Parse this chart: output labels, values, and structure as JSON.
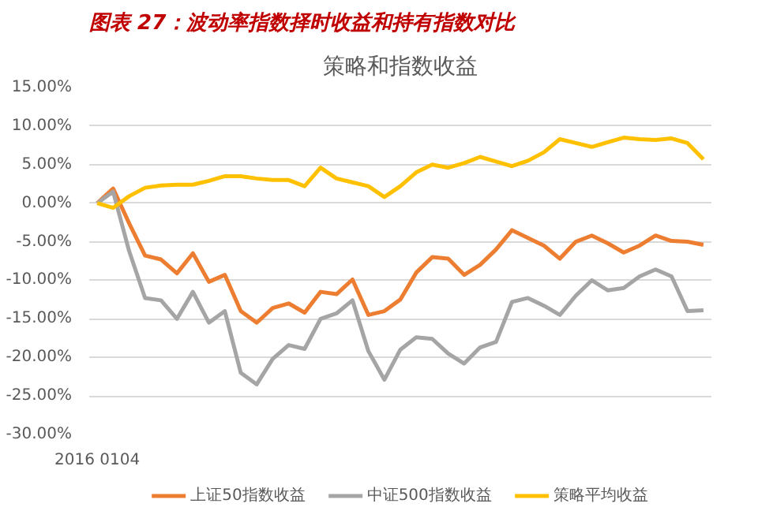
{
  "chart_data": {
    "type": "line",
    "title": "图表 27：波动率指数择时收益和持有指数对比",
    "subtitle": "策略和指数收益",
    "categories": [
      "2016 0104",
      null,
      null,
      null,
      null,
      null,
      null,
      null,
      null,
      null,
      null,
      null,
      null,
      null,
      null,
      null,
      null,
      null,
      null,
      null,
      null,
      null,
      null,
      null,
      null,
      null,
      null,
      null,
      null,
      null,
      null,
      null,
      null,
      null,
      null,
      null,
      null,
      null,
      null
    ],
    "series": [
      {
        "name": "上证50指数收益",
        "color": "#ed7d31",
        "values": [
          0,
          1.9,
          -2.6,
          -6.8,
          -7.3,
          -9.1,
          -6.5,
          -10.2,
          -9.3,
          -14.0,
          -15.5,
          -13.6,
          -13.0,
          -14.2,
          -11.5,
          -11.8,
          -9.9,
          -14.5,
          -14.0,
          -12.5,
          -9.0,
          -7.0,
          -7.2,
          -9.3,
          -8.0,
          -6.0,
          -3.5,
          -4.5,
          -5.5,
          -7.2,
          -5.0,
          -4.2,
          -5.2,
          -6.4,
          -5.5,
          -4.2,
          -4.9,
          -5.0,
          -5.4
        ]
      },
      {
        "name": "中证500指数收益",
        "color": "#a5a5a5",
        "values": [
          0,
          1.5,
          -6.2,
          -12.3,
          -12.6,
          -15.0,
          -11.5,
          -15.5,
          -14.0,
          -22.0,
          -23.5,
          -20.2,
          -18.4,
          -18.9,
          -15.0,
          -14.3,
          -12.6,
          -19.2,
          -22.9,
          -19.0,
          -17.4,
          -17.6,
          -19.5,
          -20.8,
          -18.7,
          -18.0,
          -12.8,
          -12.3,
          -13.3,
          -14.5,
          -12.0,
          -10.0,
          -11.3,
          -11.0,
          -9.5,
          -8.6,
          -9.5,
          -14.0,
          -13.9
        ]
      },
      {
        "name": "策略平均收益",
        "color": "#ffc000",
        "values": [
          0,
          -0.6,
          0.9,
          2.0,
          2.3,
          2.4,
          2.4,
          2.9,
          3.5,
          3.5,
          3.2,
          3.0,
          3.0,
          2.2,
          4.6,
          3.2,
          2.7,
          2.2,
          0.8,
          2.2,
          4.0,
          5.0,
          4.6,
          5.2,
          6.0,
          5.4,
          4.8,
          5.5,
          6.6,
          8.3,
          7.8,
          7.3,
          7.9,
          8.5,
          8.3,
          8.2,
          8.4,
          7.8,
          5.7
        ]
      }
    ],
    "ylim": [
      -30,
      15
    ],
    "yticks": [
      {
        "value": 15,
        "label": "15.00%"
      },
      {
        "value": 10,
        "label": "10.00%"
      },
      {
        "value": 5,
        "label": "5.00%"
      },
      {
        "value": 0,
        "label": "0.00%"
      },
      {
        "value": -5,
        "label": "-5.00%"
      },
      {
        "value": -10,
        "label": "-10.00%"
      },
      {
        "value": -15,
        "label": "-15.00%"
      },
      {
        "value": -20,
        "label": "-20.00%"
      },
      {
        "value": -25,
        "label": "-25.00%"
      },
      {
        "value": -30,
        "label": "-30.00%"
      }
    ],
    "grid": "y",
    "legend": "bottom",
    "marker": "none",
    "line_style": "solid"
  }
}
